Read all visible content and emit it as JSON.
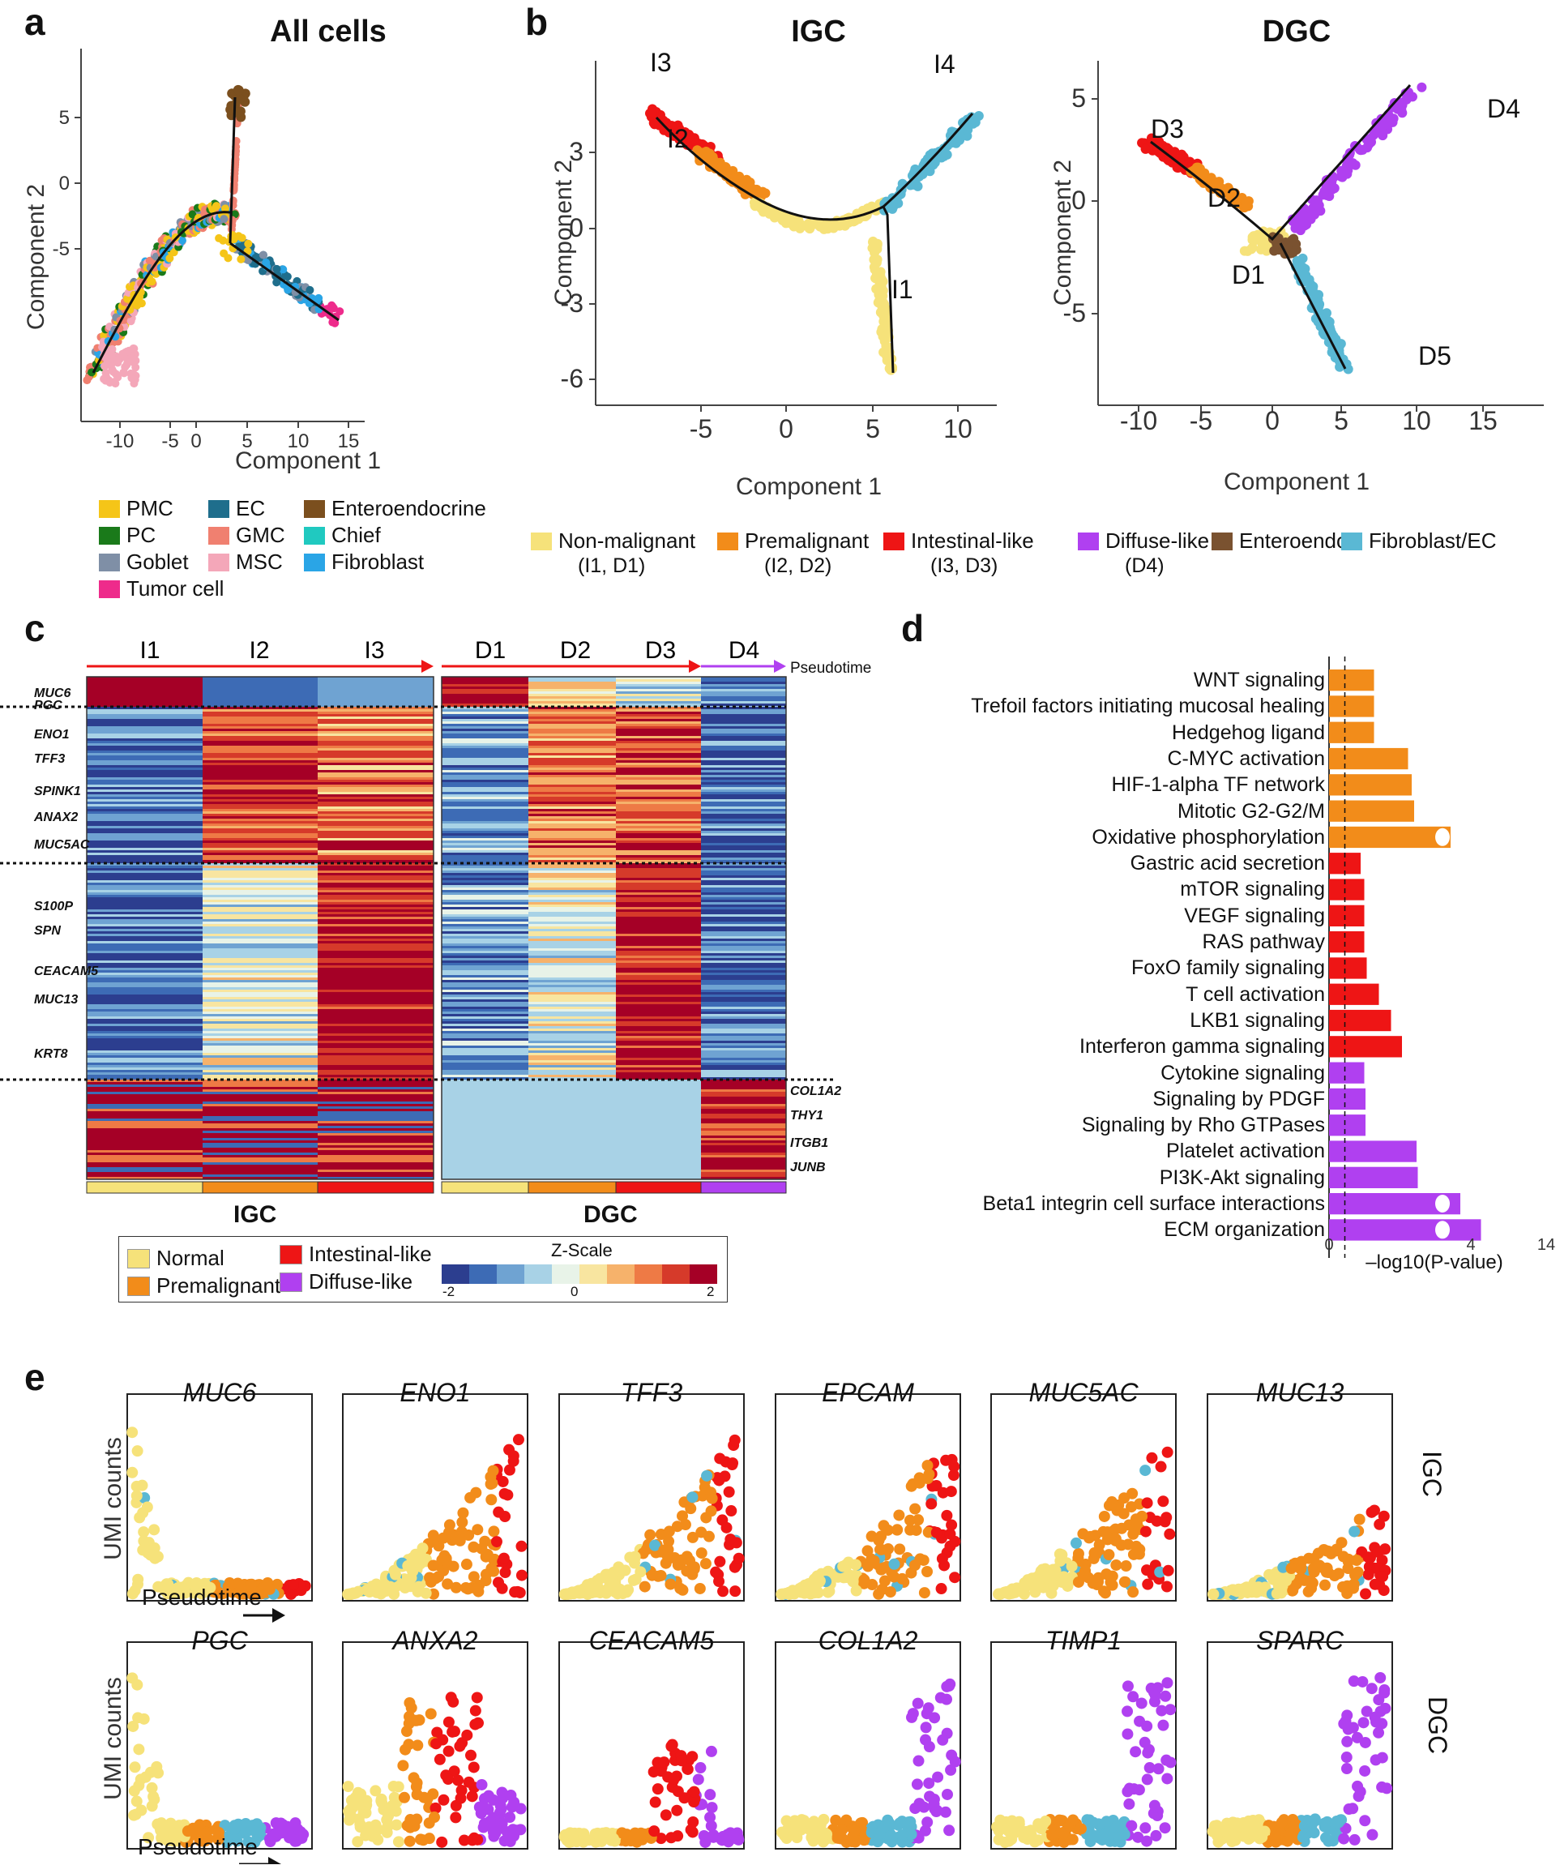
{
  "panel_labels": {
    "a": "a",
    "b": "b",
    "c": "c",
    "d": "d",
    "e": "e"
  },
  "colors": {
    "PMC": "#f5c518",
    "PC": "#1a7a1a",
    "Goblet": "#7f8fa6",
    "Tumor cell": "#ee2b8b",
    "EC": "#1f6e8c",
    "GMC": "#f08070",
    "MSC": "#f4a7b9",
    "Enteroendocrine": "#7b4f1e",
    "Chief": "#20c9c0",
    "Fibroblast": "#2aa5e6",
    "nonmal": "#f6e27a",
    "premal": "#f28c1a",
    "intestinal": "#ee1515",
    "diffuse": "#b040f0",
    "enteroendo": "#7a5230",
    "fibroec": "#5ab8d4"
  },
  "panel_a": {
    "title": "All cells",
    "xlabel": "Component 1",
    "ylabel": "Component 2",
    "legend": [
      {
        "label": "PMC",
        "color": "#f5c518"
      },
      {
        "label": "PC",
        "color": "#1a7a1a"
      },
      {
        "label": "Goblet",
        "color": "#7f8fa6"
      },
      {
        "label": "Tumor cell",
        "color": "#ee2b8b"
      },
      {
        "label": "EC",
        "color": "#1f6e8c"
      },
      {
        "label": "GMC",
        "color": "#f08070"
      },
      {
        "label": "MSC",
        "color": "#f4a7b9"
      },
      {
        "label": "Enteroendocrine",
        "color": "#7b4f1e"
      },
      {
        "label": "Chief",
        "color": "#20c9c0"
      },
      {
        "label": "Fibroblast",
        "color": "#2aa5e6"
      }
    ]
  },
  "panel_b": {
    "igc_title": "IGC",
    "dgc_title": "DGC",
    "xlabel": "Component 1",
    "ylabel": "Component 2",
    "igc_states": [
      "I1",
      "I2",
      "I3",
      "I4"
    ],
    "dgc_states": [
      "D1",
      "D2",
      "D3",
      "D4",
      "D5"
    ],
    "legend": [
      {
        "label": "Non-malignant",
        "sub": "(I1, D1)",
        "color": "#f6e27a"
      },
      {
        "label": "Premalignant",
        "sub": "(I2, D2)",
        "color": "#f28c1a"
      },
      {
        "label": "Intestinal-like",
        "sub": "(I3, D3)",
        "color": "#ee1515"
      },
      {
        "label": "Diffuse-like",
        "sub": "(D4)",
        "color": "#b040f0"
      },
      {
        "label": "Enteroendo",
        "sub": "",
        "color": "#7a5230"
      },
      {
        "label": "Fibroblast/EC",
        "sub": "",
        "color": "#5ab8d4"
      }
    ]
  },
  "panel_c": {
    "igc_cols": [
      "I1",
      "I2",
      "I3"
    ],
    "dgc_cols": [
      "D1",
      "D2",
      "D3",
      "D4"
    ],
    "pseudotime": "Pseudotime",
    "genes_left": [
      "MUC6",
      "PGC",
      "ENO1",
      "TFF3",
      "SPINK1",
      "ANAX2",
      "MUC5AC",
      "S100P",
      "SPN",
      "CEACAM5",
      "MUC13",
      "KRT8"
    ],
    "genes_right": [
      "COL1A2",
      "THY1",
      "ITGB1",
      "JUNB"
    ],
    "igc_label": "IGC",
    "dgc_label": "DGC",
    "legend": {
      "normal": "Normal",
      "premalignant": "Premalignant",
      "intestinal": "Intestinal-like",
      "diffuse": "Diffuse-like",
      "zscale": "Z-Scale",
      "zmin": "-2",
      "zmid": "0",
      "zmax": "2"
    }
  },
  "chart_data": [
    {
      "type": "bar",
      "orientation": "horizontal",
      "xlabel": "–log10(P-value)",
      "xticks": [
        "0",
        "4",
        "14"
      ],
      "categories": [
        "WNT signaling",
        "Trefoil factors initiating mucosal healing",
        "Hedgehog ligand",
        "C-MYC activation",
        "HIF-1-alpha TF network",
        "Mitotic G2-G2/M",
        "Oxidative phosphorylation",
        "Gastric acid secretion",
        "mTOR signaling",
        "VEGF signaling",
        "RAS pathway",
        "FoxO family signaling",
        "T cell activation",
        "LKB1 signaling",
        "Interferon gamma signaling",
        "Cytokine signaling",
        "Signaling by PDGF",
        "Signaling by Rho GTPases",
        "Platelet activation",
        "PI3K-Akt signaling",
        "Beta1 integrin cell surface interactions",
        "ECM organization"
      ],
      "values": [
        3.7,
        3.7,
        3.7,
        6.5,
        6.8,
        7.0,
        10.0,
        2.6,
        2.9,
        2.9,
        2.9,
        3.1,
        4.1,
        5.1,
        6.0,
        2.9,
        3.0,
        3.0,
        7.2,
        7.3,
        10.8,
        12.5
      ],
      "groups": [
        "premal",
        "premal",
        "premal",
        "premal",
        "premal",
        "premal",
        "premal",
        "intestinal",
        "intestinal",
        "intestinal",
        "intestinal",
        "intestinal",
        "intestinal",
        "intestinal",
        "intestinal",
        "diffuse",
        "diffuse",
        "diffuse",
        "diffuse",
        "diffuse",
        "diffuse",
        "diffuse"
      ],
      "threshold": 1.3
    }
  ],
  "panel_e": {
    "ylabel": "UMI counts",
    "xlabel": "Pseudotime",
    "row1_label": "IGC",
    "row2_label": "DGC",
    "row1": [
      "MUC6",
      "ENO1",
      "TFF3",
      "EPCAM",
      "MUC5AC",
      "MUC13"
    ],
    "row2": [
      "PGC",
      "ANXA2",
      "CEACAM5",
      "COL1A2",
      "TIMP1",
      "SPARC"
    ]
  }
}
